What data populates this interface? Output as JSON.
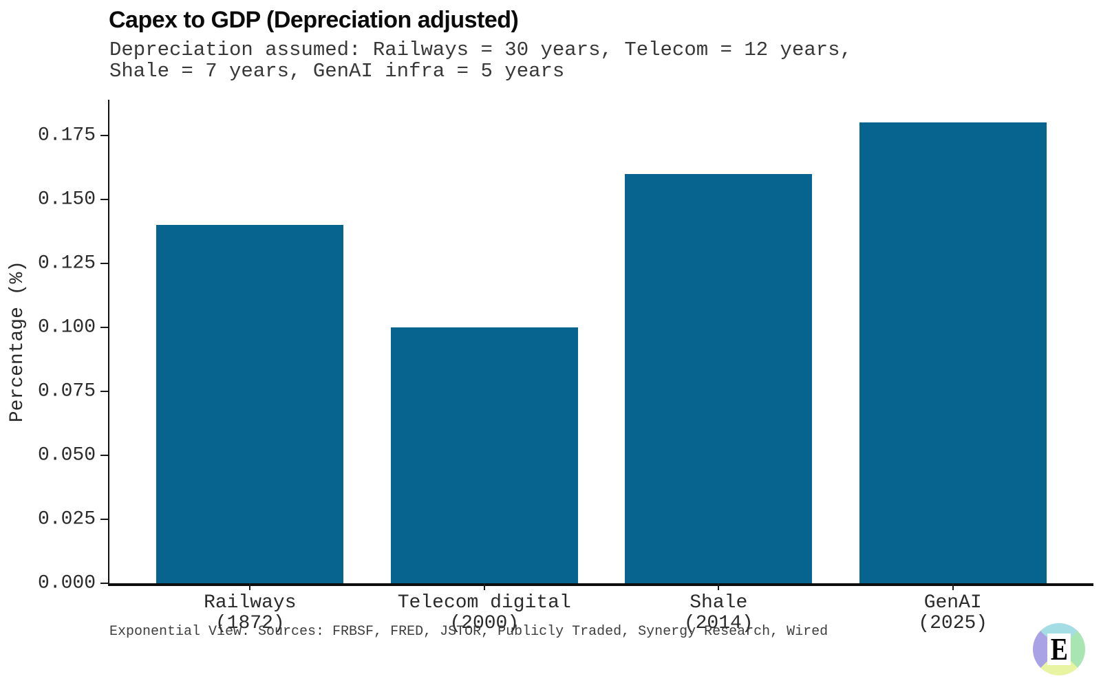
{
  "figure": {
    "background": "#ffffff",
    "footer": "Exponential View. Sources: FRBSF, FRED, JSTOR, Publicly Traded, Synergy Research, Wired"
  },
  "chart_data": {
    "type": "bar",
    "title": "Capex to GDP (Depreciation adjusted)",
    "subtitle_lines": [
      "Depreciation assumed: Railways = 30 years, Telecom = 12 years,",
      "Shale = 7 years, GenAI infra = 5 years"
    ],
    "categories": [
      {
        "label": "Railways",
        "year": "(1872)"
      },
      {
        "label": "Telecom digital",
        "year": "(2000)"
      },
      {
        "label": "Shale",
        "year": "(2014)"
      },
      {
        "label": "GenAI",
        "year": "(2025)"
      }
    ],
    "values": [
      0.14,
      0.1,
      0.16,
      0.18
    ],
    "xlabel": "",
    "ylabel": "Percentage (%)",
    "yticks": [
      0.0,
      0.025,
      0.05,
      0.075,
      0.1,
      0.125,
      0.15,
      0.175
    ],
    "ytick_decimals": 3,
    "ylim": [
      0,
      0.189
    ],
    "xlim_units": [
      -0.6,
      3.6
    ],
    "bar_width_units": 0.8,
    "grid": false,
    "legend": false,
    "bar_color": "#06648e",
    "axis_color": "#111111"
  },
  "logo": {
    "letter": "E",
    "quadrant_colors": {
      "top": "#a5dde4",
      "right": "#a9e5b2",
      "bottom": "#e9f4a3",
      "left": "#a9a2e5"
    }
  }
}
